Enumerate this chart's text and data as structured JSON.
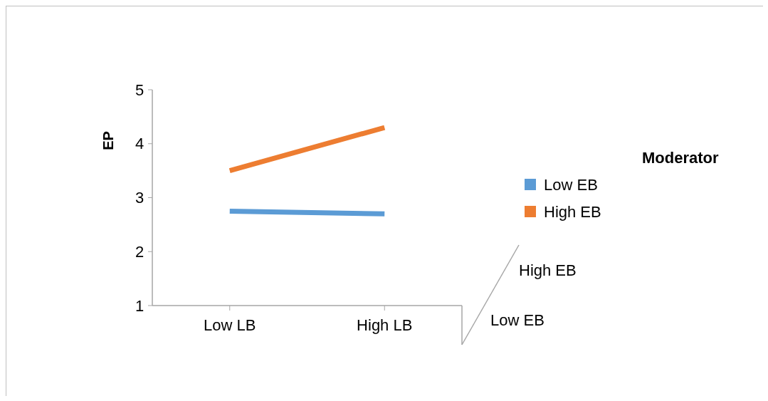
{
  "chart_data": {
    "type": "line",
    "ylabel": "EP",
    "legend_title": "Moderator",
    "legend": "right",
    "categories": [
      "Low LB",
      "High LB"
    ],
    "ylim": [
      1,
      5
    ],
    "yticks": [
      1,
      2,
      3,
      4,
      5
    ],
    "grid": false,
    "series": [
      {
        "name": "Low EB",
        "color": "#5b9bd5",
        "values": [
          2.75,
          2.7
        ]
      },
      {
        "name": "High EB",
        "color": "#ed7d31",
        "values": [
          3.5,
          4.3
        ]
      }
    ]
  }
}
